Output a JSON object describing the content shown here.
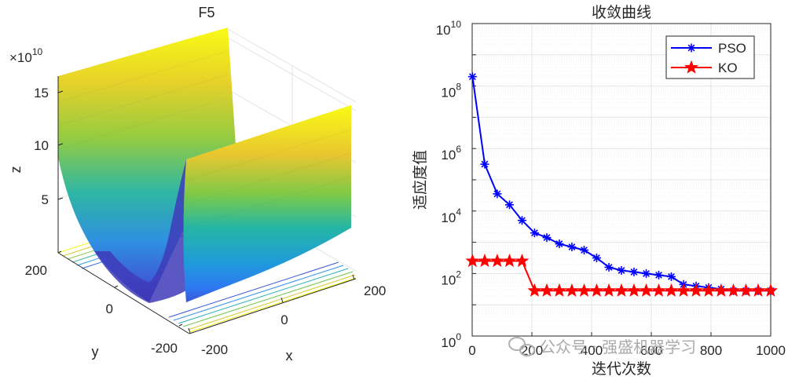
{
  "chart_data": [
    {
      "type": "surface",
      "title": "F5",
      "xlabel": "x",
      "ylabel": "y",
      "zlabel": "z",
      "z_exponent_label": "×10",
      "z_exponent_power": "10",
      "x_ticks": [
        "-200",
        "0",
        "200"
      ],
      "y_ticks": [
        "-200",
        "0",
        "200"
      ],
      "z_ticks": [
        "5",
        "10",
        "15"
      ],
      "colormap": [
        "#3e26a8",
        "#2f7ef7",
        "#1cb3b7",
        "#7bc944",
        "#f8ba3d",
        "#f9fb15"
      ]
    },
    {
      "type": "line",
      "title": "收敛曲线",
      "xlabel": "迭代次数",
      "ylabel": "适应度值",
      "y_scale": "log",
      "xlim": [
        0,
        1000
      ],
      "ylim_exponents": [
        0,
        10
      ],
      "x_ticks": [
        "0",
        "200",
        "400",
        "600",
        "800",
        "1000"
      ],
      "y_tick_base": "10",
      "y_tick_powers": [
        "0",
        "2",
        "4",
        "6",
        "8",
        "10"
      ],
      "legend_position": "top-right",
      "series": [
        {
          "name": "PSO",
          "color": "#0000ff",
          "marker": "asterisk",
          "x": [
            1,
            42,
            84,
            125,
            167,
            209,
            250,
            292,
            334,
            375,
            417,
            458,
            500,
            542,
            583,
            625,
            667,
            708,
            750,
            792,
            834,
            875,
            917,
            958,
            1000
          ],
          "y_log10": [
            8.3,
            5.5,
            4.55,
            4.2,
            3.7,
            3.3,
            3.15,
            2.95,
            2.85,
            2.75,
            2.5,
            2.2,
            2.1,
            2.05,
            2.0,
            1.95,
            1.9,
            1.65,
            1.6,
            1.55,
            1.5,
            1.45,
            1.45,
            1.45,
            1.45
          ]
        },
        {
          "name": "KO",
          "color": "#ff0000",
          "marker": "pentagram",
          "x": [
            1,
            42,
            84,
            125,
            167,
            209,
            250,
            292,
            334,
            375,
            417,
            458,
            500,
            542,
            583,
            625,
            667,
            708,
            750,
            792,
            834,
            875,
            917,
            958,
            1000
          ],
          "y_log10": [
            2.4,
            2.4,
            2.4,
            2.4,
            2.4,
            1.45,
            1.45,
            1.45,
            1.45,
            1.45,
            1.45,
            1.45,
            1.45,
            1.45,
            1.45,
            1.45,
            1.45,
            1.45,
            1.45,
            1.45,
            1.45,
            1.45,
            1.45,
            1.45,
            1.45
          ]
        }
      ]
    }
  ],
  "watermark": "公众号 · 强盛机器学习"
}
